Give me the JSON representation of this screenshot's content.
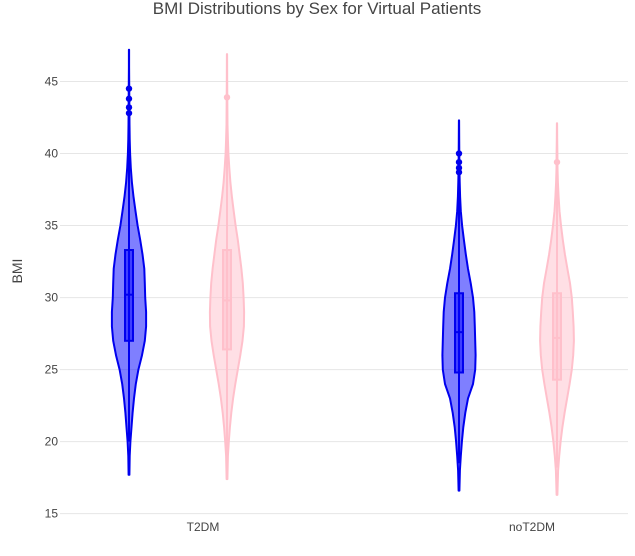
{
  "chart_data": {
    "type": "violin",
    "title": "BMI Distributions by Sex for Virtual Patients",
    "xlabel": "",
    "ylabel": "BMI",
    "categories": [
      "T2DM",
      "noT2DM"
    ],
    "ylim": [
      14.7,
      47.6
    ],
    "yticks": [
      15,
      20,
      25,
      30,
      35,
      40,
      45
    ],
    "grid": true,
    "legend": "none",
    "series": [
      {
        "color": "#0000ee",
        "fill": "rgba(0,0,255,0.5)",
        "side_offset": -0.25,
        "violins": [
          {
            "category": "T2DM",
            "range": [
              17.7,
              47.2
            ],
            "box": {
              "q1": 27.0,
              "median": 30.2,
              "q3": 33.3,
              "whisker_low": 20.0,
              "whisker_high": 42.5
            },
            "outliers": [
              42.8,
              43.2,
              43.8,
              44.5
            ],
            "density": [
              [
                17.7,
                0.02
              ],
              [
                19,
                0.04
              ],
              [
                20,
                0.08
              ],
              [
                21,
                0.14
              ],
              [
                22,
                0.2
              ],
              [
                23,
                0.28
              ],
              [
                24,
                0.38
              ],
              [
                25,
                0.52
              ],
              [
                26,
                0.72
              ],
              [
                27,
                0.88
              ],
              [
                28,
                0.95
              ],
              [
                29,
                0.95
              ],
              [
                30,
                0.9
              ],
              [
                31,
                0.88
              ],
              [
                32,
                0.85
              ],
              [
                33,
                0.75
              ],
              [
                34,
                0.62
              ],
              [
                35,
                0.48
              ],
              [
                36,
                0.36
              ],
              [
                37,
                0.25
              ],
              [
                38,
                0.16
              ],
              [
                39,
                0.1
              ],
              [
                40,
                0.06
              ],
              [
                41,
                0.04
              ],
              [
                42,
                0.03
              ],
              [
                43,
                0.02
              ],
              [
                44,
                0.015
              ],
              [
                45,
                0.01
              ],
              [
                46,
                0.008
              ],
              [
                47.2,
                0.005
              ]
            ]
          },
          {
            "category": "noT2DM",
            "range": [
              16.6,
              42.3
            ],
            "box": {
              "q1": 24.8,
              "median": 27.6,
              "q3": 30.3,
              "whisker_low": 18.5,
              "whisker_high": 38.5
            },
            "outliers": [
              38.7,
              39.0,
              39.4,
              40.0
            ],
            "density": [
              [
                16.6,
                0.02
              ],
              [
                18,
                0.05
              ],
              [
                19,
                0.1
              ],
              [
                20,
                0.16
              ],
              [
                21,
                0.24
              ],
              [
                22,
                0.35
              ],
              [
                23,
                0.5
              ],
              [
                24,
                0.78
              ],
              [
                25,
                0.9
              ],
              [
                26,
                0.92
              ],
              [
                27,
                0.9
              ],
              [
                28,
                0.88
              ],
              [
                29,
                0.85
              ],
              [
                30,
                0.78
              ],
              [
                31,
                0.65
              ],
              [
                32,
                0.5
              ],
              [
                33,
                0.38
              ],
              [
                34,
                0.27
              ],
              [
                35,
                0.17
              ],
              [
                36,
                0.1
              ],
              [
                37,
                0.06
              ],
              [
                38,
                0.04
              ],
              [
                39,
                0.025
              ],
              [
                40,
                0.015
              ],
              [
                41,
                0.01
              ],
              [
                42.3,
                0.005
              ]
            ]
          }
        ]
      },
      {
        "color": "#ffc0cb",
        "fill": "rgba(255,192,203,0.5)",
        "side_offset": 0.25,
        "violins": [
          {
            "category": "T2DM",
            "range": [
              17.4,
              46.9
            ],
            "box": {
              "q1": 26.4,
              "median": 29.8,
              "q3": 33.3,
              "whisker_low": 19.0,
              "whisker_high": 43.5
            },
            "outliers": [
              43.9
            ],
            "density": [
              [
                17.4,
                0.02
              ],
              [
                19,
                0.05
              ],
              [
                20,
                0.1
              ],
              [
                21,
                0.16
              ],
              [
                22,
                0.24
              ],
              [
                23,
                0.34
              ],
              [
                24,
                0.46
              ],
              [
                25,
                0.6
              ],
              [
                26,
                0.74
              ],
              [
                27,
                0.86
              ],
              [
                28,
                0.94
              ],
              [
                29,
                0.95
              ],
              [
                30,
                0.92
              ],
              [
                31,
                0.88
              ],
              [
                32,
                0.8
              ],
              [
                33,
                0.7
              ],
              [
                34,
                0.6
              ],
              [
                35,
                0.48
              ],
              [
                36,
                0.37
              ],
              [
                37,
                0.27
              ],
              [
                38,
                0.19
              ],
              [
                39,
                0.13
              ],
              [
                40,
                0.08
              ],
              [
                41,
                0.05
              ],
              [
                42,
                0.03
              ],
              [
                43,
                0.02
              ],
              [
                44,
                0.015
              ],
              [
                45,
                0.01
              ],
              [
                46.9,
                0.005
              ]
            ]
          },
          {
            "category": "noT2DM",
            "range": [
              16.3,
              42.1
            ],
            "box": {
              "q1": 24.3,
              "median": 27.2,
              "q3": 30.3,
              "whisker_low": 18.2,
              "whisker_high": 39.0
            },
            "outliers": [
              39.4
            ],
            "density": [
              [
                16.3,
                0.02
              ],
              [
                18,
                0.06
              ],
              [
                19,
                0.12
              ],
              [
                20,
                0.2
              ],
              [
                21,
                0.3
              ],
              [
                22,
                0.42
              ],
              [
                23,
                0.56
              ],
              [
                24,
                0.7
              ],
              [
                25,
                0.82
              ],
              [
                26,
                0.9
              ],
              [
                27,
                0.94
              ],
              [
                28,
                0.92
              ],
              [
                29,
                0.88
              ],
              [
                30,
                0.82
              ],
              [
                31,
                0.72
              ],
              [
                32,
                0.58
              ],
              [
                33,
                0.44
              ],
              [
                34,
                0.32
              ],
              [
                35,
                0.22
              ],
              [
                36,
                0.14
              ],
              [
                37,
                0.09
              ],
              [
                38,
                0.05
              ],
              [
                39,
                0.03
              ],
              [
                40,
                0.02
              ],
              [
                41,
                0.01
              ],
              [
                42.1,
                0.005
              ]
            ]
          }
        ]
      }
    ]
  }
}
